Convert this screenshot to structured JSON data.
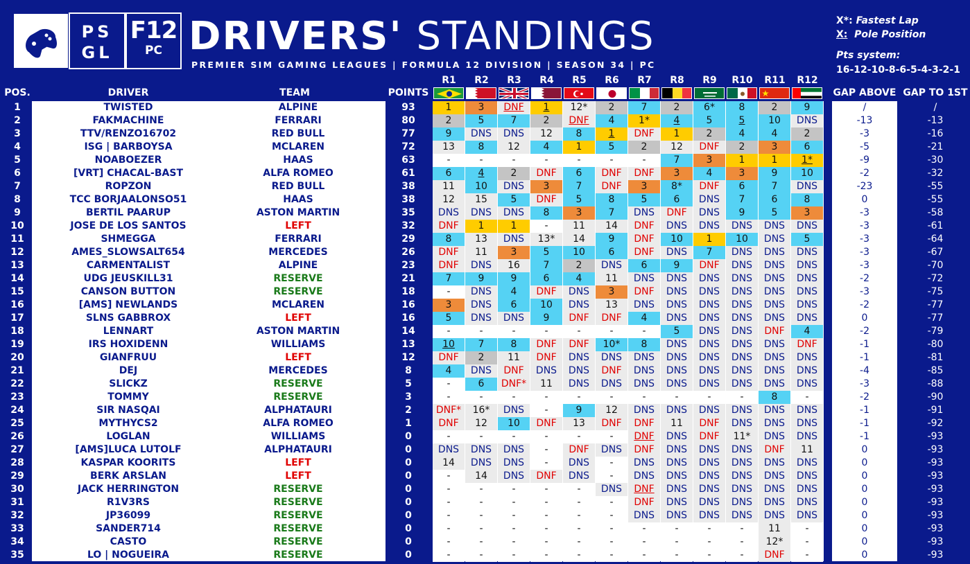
{
  "logo": {
    "psgl_line1": "PS",
    "psgl_line2": "GL",
    "f12_big": "F12",
    "f12_small": "PC"
  },
  "title": {
    "bold": "DRIVERS'",
    "light": "STANDINGS"
  },
  "subtitle": "PREMIER SIM GAMING LEAGUES | FORMULA 12 DIVISION | SEASON 34 | PC",
  "legend": {
    "fl_key": "X*:",
    "fl_text": "Fastest Lap",
    "pole_key": "X:",
    "pole_text": "Pole Position",
    "pts_label": "Pts system:",
    "pts_value": "16-12-10-8-6-5-4-3-2-1"
  },
  "headers": {
    "pos": "POS.",
    "driver": "DRIVER",
    "team": "TEAM",
    "points": "POINTS",
    "gap_above": "GAP ABOVE",
    "gap_first": "GAP TO 1ST"
  },
  "rounds": [
    "R1",
    "R2",
    "R3",
    "R4",
    "R5",
    "R6",
    "R7",
    "R8",
    "R9",
    "R10",
    "R11",
    "R12"
  ],
  "flags": [
    "brazil-flag",
    "bahrain-flag",
    "uk-flag",
    "qatar-flag",
    "turkey-flag",
    "japan-flag",
    "italy-flag",
    "belgium-flag",
    "saudi-flag",
    "mexico-flag",
    "china-flag",
    "uae-flag"
  ],
  "colors": {
    "background": "#0a1a8c",
    "gold": "#ffcc00",
    "silver": "#c4c4c4",
    "bronze": "#ee8b3a",
    "points": "#55d2f4",
    "no_points": "#ebebeb",
    "dnf": "#e00000",
    "reserve": "#1a7a1a"
  },
  "rows": [
    {
      "pos": "1",
      "driver": "TWISTED",
      "team": "ALPINE",
      "team_kind": "",
      "points": "93",
      "results": [
        "1",
        "3",
        "DNF",
        "1",
        "12*",
        "2",
        "7",
        "2",
        "6*",
        "8",
        "2",
        "9"
      ],
      "gap_above": "/",
      "gap_first": "/"
    },
    {
      "pos": "2",
      "driver": "FAKMACHINE",
      "team": "FERRARI",
      "team_kind": "",
      "points": "80",
      "results": [
        "2",
        "5",
        "7",
        "2",
        "DNF",
        "4",
        "1*",
        "4",
        "5",
        "5",
        "10",
        "DNS"
      ],
      "gap_above": "-13",
      "gap_first": "-13"
    },
    {
      "pos": "3",
      "driver": "TTV/RENZO16702",
      "team": "RED BULL",
      "team_kind": "",
      "points": "77",
      "results": [
        "9",
        "DNS",
        "DNS",
        "12",
        "8",
        "1",
        "DNF",
        "1",
        "2",
        "4",
        "4",
        "2"
      ],
      "gap_above": "-3",
      "gap_first": "-16"
    },
    {
      "pos": "4",
      "driver": "ISG | BARBOYSA",
      "team": "MCLAREN",
      "team_kind": "",
      "points": "72",
      "results": [
        "13",
        "8",
        "12",
        "4",
        "1",
        "5",
        "2",
        "12",
        "DNF",
        "2",
        "3",
        "6"
      ],
      "gap_above": "-5",
      "gap_first": "-21"
    },
    {
      "pos": "5",
      "driver": "NOABOEZER",
      "team": "HAAS",
      "team_kind": "",
      "points": "63",
      "results": [
        "-",
        "-",
        "-",
        "-",
        "-",
        "-",
        "-",
        "7",
        "3",
        "1",
        "1",
        "1*"
      ],
      "gap_above": "-9",
      "gap_first": "-30"
    },
    {
      "pos": "6",
      "driver": "[VRT] CHACAL-BAST",
      "team": "ALFA ROMEO",
      "team_kind": "",
      "points": "61",
      "results": [
        "6",
        "4",
        "2",
        "DNF",
        "6",
        "DNF",
        "DNF",
        "3",
        "4",
        "3",
        "9",
        "10"
      ],
      "gap_above": "-2",
      "gap_first": "-32"
    },
    {
      "pos": "7",
      "driver": "ROPZON",
      "team": "RED BULL",
      "team_kind": "",
      "points": "38",
      "results": [
        "11",
        "10",
        "DNS",
        "3",
        "7",
        "DNF",
        "3",
        "8*",
        "DNF",
        "6",
        "7",
        "DNS"
      ],
      "gap_above": "-23",
      "gap_first": "-55"
    },
    {
      "pos": "8",
      "driver": "TCC BORJAALONSO51",
      "team": "HAAS",
      "team_kind": "",
      "points": "38",
      "results": [
        "12",
        "15",
        "5",
        "DNF",
        "5",
        "8",
        "5",
        "6",
        "DNS",
        "7",
        "6",
        "8"
      ],
      "gap_above": "0",
      "gap_first": "-55"
    },
    {
      "pos": "9",
      "driver": "BERTIL PAARUP",
      "team": "ASTON MARTIN",
      "team_kind": "",
      "points": "35",
      "results": [
        "DNS",
        "DNS",
        "DNS",
        "8",
        "3",
        "7",
        "DNS",
        "DNF",
        "DNS",
        "9",
        "5",
        "3"
      ],
      "gap_above": "-3",
      "gap_first": "-58"
    },
    {
      "pos": "10",
      "driver": "JOSE DE LOS SANTOS",
      "team": "LEFT",
      "team_kind": "left",
      "points": "32",
      "results": [
        "DNF",
        "1",
        "1",
        "-",
        "11",
        "14",
        "DNF",
        "DNS",
        "DNS",
        "DNS",
        "DNS",
        "DNS"
      ],
      "gap_above": "-3",
      "gap_first": "-61"
    },
    {
      "pos": "11",
      "driver": "SHMEGGA",
      "team": "FERRARI",
      "team_kind": "",
      "points": "29",
      "results": [
        "8",
        "13",
        "DNS",
        "13*",
        "14",
        "9",
        "DNF",
        "10",
        "1",
        "10",
        "DNS",
        "5"
      ],
      "gap_above": "-3",
      "gap_first": "-64"
    },
    {
      "pos": "12",
      "driver": "AMES_SLOWSALT654",
      "team": "MERCEDES",
      "team_kind": "",
      "points": "26",
      "results": [
        "DNF",
        "11",
        "3",
        "5",
        "10",
        "6",
        "DNF",
        "DNS",
        "7",
        "DNS",
        "DNS",
        "DNS"
      ],
      "gap_above": "-3",
      "gap_first": "-67"
    },
    {
      "pos": "13",
      "driver": "CARMENTALIST",
      "team": "ALPINE",
      "team_kind": "",
      "points": "23",
      "results": [
        "DNF",
        "DNS",
        "16",
        "7",
        "2",
        "DNS",
        "6",
        "9",
        "DNF",
        "DNS",
        "DNS",
        "DNS"
      ],
      "gap_above": "-3",
      "gap_first": "-70"
    },
    {
      "pos": "14",
      "driver": "UDG JEUSKILL31",
      "team": "RESERVE",
      "team_kind": "reserve",
      "points": "21",
      "results": [
        "7",
        "9",
        "9",
        "6",
        "4",
        "11",
        "DNS",
        "DNS",
        "DNS",
        "DNS",
        "DNS",
        "DNS"
      ],
      "gap_above": "-2",
      "gap_first": "-72"
    },
    {
      "pos": "15",
      "driver": "CANSON BUTTON",
      "team": "RESERVE",
      "team_kind": "reserve",
      "points": "18",
      "results": [
        "-",
        "DNS",
        "4",
        "DNF",
        "DNS",
        "3",
        "DNF",
        "DNS",
        "DNS",
        "DNS",
        "DNS",
        "DNS"
      ],
      "gap_above": "-3",
      "gap_first": "-75"
    },
    {
      "pos": "16",
      "driver": "[AMS] NEWLANDS",
      "team": "MCLAREN",
      "team_kind": "",
      "points": "16",
      "results": [
        "3",
        "DNS",
        "6",
        "10",
        "DNS",
        "13",
        "DNS",
        "DNS",
        "DNS",
        "DNS",
        "DNS",
        "DNS"
      ],
      "gap_above": "-2",
      "gap_first": "-77"
    },
    {
      "pos": "17",
      "driver": "SLNS GABBROX",
      "team": "LEFT",
      "team_kind": "left",
      "points": "16",
      "results": [
        "5",
        "DNS",
        "DNS",
        "9",
        "DNF",
        "DNF",
        "4",
        "DNS",
        "DNS",
        "DNS",
        "DNS",
        "DNS"
      ],
      "gap_above": "0",
      "gap_first": "-77"
    },
    {
      "pos": "18",
      "driver": "LENNART",
      "team": "ASTON MARTIN",
      "team_kind": "",
      "points": "14",
      "results": [
        "-",
        "-",
        "-",
        "-",
        "-",
        "-",
        "-",
        "5",
        "DNS",
        "DNS",
        "DNF",
        "4"
      ],
      "gap_above": "-2",
      "gap_first": "-79"
    },
    {
      "pos": "19",
      "driver": "IRS HOXIDENN",
      "team": "WILLIAMS",
      "team_kind": "",
      "points": "13",
      "results": [
        "10",
        "7",
        "8",
        "DNF",
        "DNF",
        "10*",
        "8",
        "DNS",
        "DNS",
        "DNS",
        "DNS",
        "DNF"
      ],
      "gap_above": "-1",
      "gap_first": "-80"
    },
    {
      "pos": "20",
      "driver": "GIANFRUU",
      "team": "LEFT",
      "team_kind": "left",
      "points": "12",
      "results": [
        "DNF",
        "2",
        "11",
        "DNF",
        "DNS",
        "DNS",
        "DNS",
        "DNS",
        "DNS",
        "DNS",
        "DNS",
        "DNS"
      ],
      "gap_above": "-1",
      "gap_first": "-81"
    },
    {
      "pos": "21",
      "driver": "DEJ",
      "team": "MERCEDES",
      "team_kind": "",
      "points": "8",
      "results": [
        "4",
        "DNS",
        "DNF",
        "DNS",
        "DNS",
        "DNF",
        "DNS",
        "DNS",
        "DNS",
        "DNS",
        "DNS",
        "DNS"
      ],
      "gap_above": "-4",
      "gap_first": "-85"
    },
    {
      "pos": "22",
      "driver": "SLICKZ",
      "team": "RESERVE",
      "team_kind": "reserve",
      "points": "5",
      "results": [
        "-",
        "6",
        "DNF*",
        "11",
        "DNS",
        "DNS",
        "DNS",
        "DNS",
        "DNS",
        "DNS",
        "DNS",
        "DNS"
      ],
      "gap_above": "-3",
      "gap_first": "-88"
    },
    {
      "pos": "23",
      "driver": "TOMMY",
      "team": "RESERVE",
      "team_kind": "reserve",
      "points": "3",
      "results": [
        "-",
        "-",
        "-",
        "-",
        "-",
        "-",
        "-",
        "-",
        "-",
        "-",
        "8",
        "-"
      ],
      "gap_above": "-2",
      "gap_first": "-90"
    },
    {
      "pos": "24",
      "driver": "SIR NASQAI",
      "team": "ALPHATAURI",
      "team_kind": "",
      "points": "2",
      "results": [
        "DNF*",
        "16*",
        "DNS",
        "-",
        "9",
        "12",
        "DNS",
        "DNS",
        "DNS",
        "DNS",
        "DNS",
        "DNS"
      ],
      "gap_above": "-1",
      "gap_first": "-91"
    },
    {
      "pos": "25",
      "driver": "MYTHYCS2",
      "team": "ALFA ROMEO",
      "team_kind": "",
      "points": "1",
      "results": [
        "DNF",
        "12",
        "10",
        "DNF",
        "13",
        "DNF",
        "DNF",
        "11",
        "DNF",
        "DNS",
        "DNS",
        "DNS"
      ],
      "gap_above": "-1",
      "gap_first": "-92"
    },
    {
      "pos": "26",
      "driver": "LOGLAN",
      "team": "WILLIAMS",
      "team_kind": "",
      "points": "0",
      "results": [
        "-",
        "-",
        "-",
        "-",
        "-",
        "-",
        "DNF",
        "DNS",
        "DNF",
        "11*",
        "DNS",
        "DNS"
      ],
      "gap_above": "-1",
      "gap_first": "-93"
    },
    {
      "pos": "27",
      "driver": "[AMS]LUCA LUTOLF",
      "team": "ALPHATAURI",
      "team_kind": "",
      "points": "0",
      "results": [
        "DNS",
        "DNS",
        "DNS",
        "-",
        "DNF",
        "DNS",
        "DNF",
        "DNS",
        "DNS",
        "DNS",
        "DNF",
        "11"
      ],
      "gap_above": "0",
      "gap_first": "-93"
    },
    {
      "pos": "28",
      "driver": "KASPAR KOORITS",
      "team": "LEFT",
      "team_kind": "left",
      "points": "0",
      "results": [
        "14",
        "DNS",
        "DNS",
        "-",
        "DNS",
        "-",
        "DNS",
        "DNS",
        "DNS",
        "DNS",
        "DNS",
        "DNS"
      ],
      "gap_above": "0",
      "gap_first": "-93"
    },
    {
      "pos": "29",
      "driver": "BERK ARSLAN",
      "team": "LEFT",
      "team_kind": "left",
      "points": "0",
      "results": [
        "-",
        "14",
        "DNS",
        "DNF",
        "DNS",
        "-",
        "DNS",
        "DNS",
        "DNS",
        "DNS",
        "DNS",
        "DNS"
      ],
      "gap_above": "0",
      "gap_first": "-93"
    },
    {
      "pos": "30",
      "driver": "JACK HERRINGTON",
      "team": "RESERVE",
      "team_kind": "reserve",
      "points": "0",
      "results": [
        "-",
        "-",
        "-",
        "-",
        "-",
        "DNS",
        "DNF",
        "DNS",
        "DNS",
        "DNS",
        "DNS",
        "DNS"
      ],
      "gap_above": "0",
      "gap_first": "-93"
    },
    {
      "pos": "31",
      "driver": "R1V3RS",
      "team": "RESERVE",
      "team_kind": "reserve",
      "points": "0",
      "results": [
        "-",
        "-",
        "-",
        "-",
        "-",
        "-",
        "DNF",
        "DNS",
        "DNS",
        "DNS",
        "DNS",
        "DNS"
      ],
      "gap_above": "0",
      "gap_first": "-93"
    },
    {
      "pos": "32",
      "driver": "JP36099",
      "team": "RESERVE",
      "team_kind": "reserve",
      "points": "0",
      "results": [
        "-",
        "-",
        "-",
        "-",
        "-",
        "-",
        "DNS",
        "DNS",
        "DNS",
        "DNS",
        "DNS",
        "DNS"
      ],
      "gap_above": "0",
      "gap_first": "-93"
    },
    {
      "pos": "33",
      "driver": "SANDER714",
      "team": "RESERVE",
      "team_kind": "reserve",
      "points": "0",
      "results": [
        "-",
        "-",
        "-",
        "-",
        "-",
        "-",
        "-",
        "-",
        "-",
        "-",
        "11",
        "-"
      ],
      "gap_above": "0",
      "gap_first": "-93"
    },
    {
      "pos": "34",
      "driver": "CASTO",
      "team": "RESERVE",
      "team_kind": "reserve",
      "points": "0",
      "results": [
        "-",
        "-",
        "-",
        "-",
        "-",
        "-",
        "-",
        "-",
        "-",
        "-",
        "12*",
        "-"
      ],
      "gap_above": "0",
      "gap_first": "-93"
    },
    {
      "pos": "35",
      "driver": "LO | NOGUEIRA",
      "team": "RESERVE",
      "team_kind": "reserve",
      "points": "0",
      "results": [
        "-",
        "-",
        "-",
        "-",
        "-",
        "-",
        "-",
        "-",
        "-",
        "-",
        "DNF",
        "-"
      ],
      "gap_above": "0",
      "gap_first": "-93"
    }
  ]
}
